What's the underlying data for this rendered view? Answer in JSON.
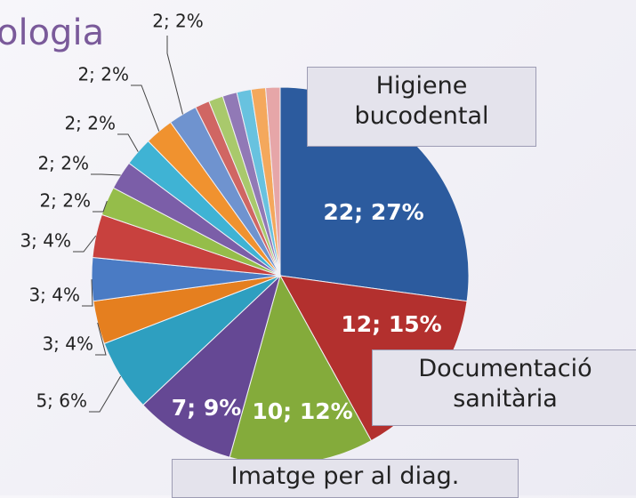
{
  "chart_data": {
    "type": "pie",
    "title": "ologia",
    "categories": [
      "Higiene bucodental",
      "Documentació sanitària",
      "Imatge per al diag.",
      null,
      null,
      null,
      null,
      null,
      null,
      null,
      null,
      null,
      null,
      null,
      null,
      null,
      null,
      null,
      null
    ],
    "values": [
      22,
      12,
      10,
      7,
      5,
      3,
      3,
      3,
      2,
      2,
      2,
      2,
      2,
      1,
      1,
      1,
      1,
      1,
      1
    ],
    "value_labels": [
      "22; 27%",
      "12; 15%",
      "10; 12%",
      "7; 9%",
      "5; 6%",
      "3; 4%",
      "3; 4%",
      "3; 4%",
      "2; 2%",
      "2; 2%",
      "2; 2%",
      "2; 2%",
      "2; 2%",
      null,
      null,
      null,
      null,
      null,
      null
    ],
    "colors": [
      "#2c5b9e",
      "#b3302e",
      "#84ab3b",
      "#654894",
      "#2e9fc0",
      "#e57f1f",
      "#4a7bc4",
      "#c8413e",
      "#95bd4a",
      "#7b5ea8",
      "#3fb3d4",
      "#f0922f",
      "#6f93cf",
      "#d06663",
      "#a9c96c",
      "#9179b6",
      "#68c2df",
      "#f4a85c",
      "#e6a6a8"
    ]
  }
}
